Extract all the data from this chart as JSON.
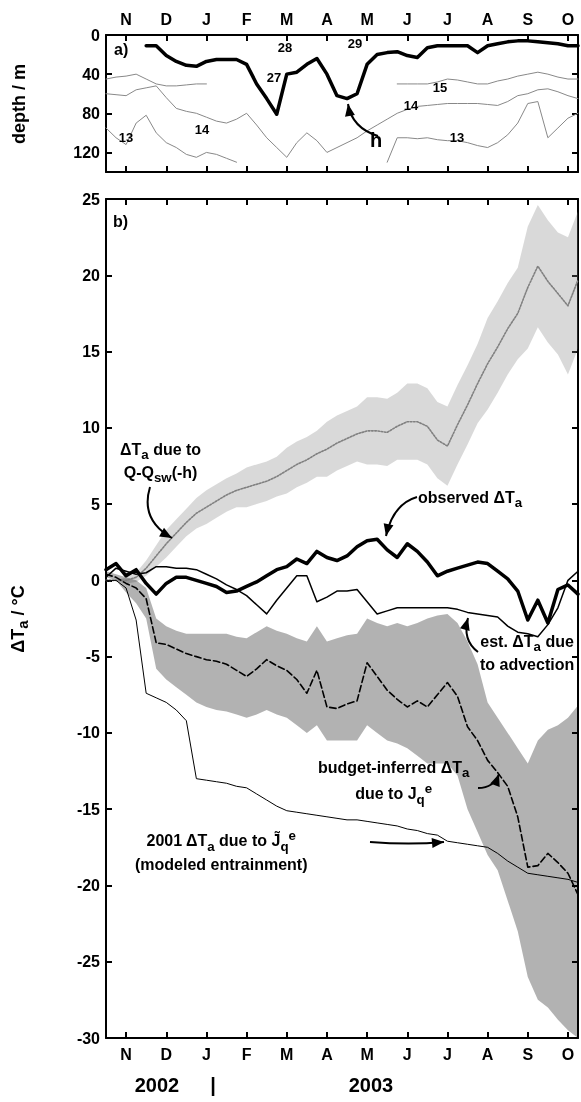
{
  "chart_data": [
    {
      "type": "line",
      "ylabel": "depth / m",
      "marker": "none",
      "categories": [
        null,
        null,
        "N",
        null,
        null,
        null,
        "D",
        null,
        null,
        null,
        "J",
        null,
        null,
        null,
        "F",
        null,
        null,
        null,
        "M",
        null,
        null,
        null,
        "A",
        null,
        null,
        null,
        "M",
        null,
        null,
        null,
        "J",
        null,
        null,
        null,
        "J",
        null,
        null,
        null,
        "A",
        null,
        null,
        null,
        "S",
        null,
        null,
        null,
        "O",
        null
      ],
      "ylim": [
        140,
        0
      ],
      "yticks": [
        0,
        40,
        80,
        120
      ],
      "series": [
        {
          "name": "h",
          "color": "#000000",
          "line_style": "solid",
          "values": [
            null,
            null,
            null,
            null,
            11,
            11,
            21,
            27,
            31,
            32,
            27,
            25,
            25,
            25,
            30,
            50,
            65,
            81,
            40,
            38,
            30,
            24,
            40,
            62,
            65,
            60,
            30,
            20,
            18,
            17,
            21,
            23,
            13,
            11,
            11,
            11,
            11,
            18,
            11,
            9,
            7,
            6,
            6,
            7,
            8,
            9,
            11,
            11
          ]
        },
        {
          "color": "#888888",
          "line_style": "solid",
          "values": [
            60,
            61,
            62,
            56,
            54,
            52,
            64,
            75,
            78,
            80,
            84,
            88,
            90,
            86,
            80,
            92,
            105,
            115,
            125,
            110,
            100,
            108,
            120,
            115,
            110,
            105,
            98,
            92,
            86,
            80,
            76,
            73,
            72,
            71,
            70,
            70,
            70,
            70,
            71,
            72,
            68,
            62,
            60,
            56,
            55,
            58,
            62,
            65
          ]
        },
        {
          "color": "#888888",
          "line_style": "solid",
          "values": [
            95,
            105,
            112,
            90,
            82,
            100,
            110,
            115,
            122,
            125,
            120,
            122,
            126,
            130,
            null,
            null,
            null,
            null,
            null,
            null,
            null,
            null,
            null,
            null,
            null,
            null,
            null,
            null,
            130,
            105,
            105,
            106,
            105,
            107,
            108,
            108,
            110,
            113,
            115,
            110,
            102,
            90,
            70,
            68,
            105,
            95,
            85,
            80
          ]
        },
        {
          "color": "#888888",
          "line_style": "solid",
          "values": [
            45,
            43,
            42,
            40,
            45,
            50,
            52,
            52,
            51,
            50,
            50,
            null,
            null,
            null,
            null,
            null,
            null,
            null,
            null,
            null,
            null,
            null,
            null,
            null,
            null,
            null,
            null,
            null,
            null,
            50,
            50,
            50,
            50,
            48,
            45,
            46,
            48,
            50,
            50,
            47,
            45,
            42,
            40,
            38,
            40,
            43,
            45,
            45
          ]
        }
      ],
      "annotations": [
        "a)",
        "13",
        "14",
        "27",
        "28",
        "29",
        "15",
        "14",
        "13"
      ]
    },
    {
      "type": "line",
      "ylabel": "ΔT$_{a}$ / °C",
      "marker": "none",
      "categories": [
        null,
        null,
        "N",
        null,
        null,
        null,
        "D",
        null,
        null,
        null,
        "J",
        null,
        null,
        null,
        "F",
        null,
        null,
        null,
        "M",
        null,
        null,
        null,
        "A",
        null,
        null,
        null,
        "M",
        null,
        null,
        null,
        "J",
        null,
        null,
        null,
        "J",
        null,
        null,
        null,
        "A",
        null,
        null,
        null,
        "S",
        null,
        null,
        null,
        "O",
        null
      ],
      "ylim": [
        -30,
        25
      ],
      "yticks": [
        -30,
        -25,
        -20,
        -15,
        -10,
        -5,
        0,
        5,
        10,
        15,
        20,
        25
      ],
      "series": [
        {
          "name": "ΔT$_{a}$ due to\nQ-Q$_{sw}$(-h)",
          "color": "#808080",
          "line_style": "dotted",
          "values": [
            0,
            0,
            0,
            0.2,
            0.8,
            1.6,
            2.4,
            3.1,
            3.8,
            4.4,
            4.8,
            5.2,
            5.6,
            5.9,
            6.1,
            6.3,
            6.5,
            6.8,
            7.2,
            7.6,
            7.9,
            8.3,
            8.6,
            9,
            9.3,
            9.6,
            9.8,
            9.8,
            9.7,
            10.1,
            10.4,
            10.4,
            10.1,
            9.2,
            8.8,
            10.2,
            11.5,
            12.9,
            14.2,
            15.3,
            16.5,
            17.5,
            19.2,
            20.6,
            19.6,
            18.8,
            18,
            19.7
          ],
          "lower": [
            0,
            0,
            -0.2,
            -0.1,
            0.3,
            0.9,
            1.5,
            2.2,
            2.9,
            3.4,
            3.7,
            4.1,
            4.5,
            4.8,
            4.8,
            5,
            5.2,
            5.5,
            5.7,
            6.1,
            6.4,
            6.8,
            6.8,
            7.2,
            7.5,
            7.8,
            7.6,
            7.6,
            7.5,
            7.9,
            7.9,
            7.9,
            7.6,
            6.7,
            6.2,
            7.6,
            8.9,
            10.3,
            11.2,
            12.3,
            13.5,
            14.5,
            15.2,
            16.6,
            15.6,
            14.8,
            13.5,
            15.2
          ],
          "upper": [
            0,
            0,
            0.2,
            0.5,
            1.3,
            2.3,
            3.3,
            4,
            4.7,
            5.4,
            5.9,
            6.3,
            6.7,
            7,
            7.4,
            7.6,
            7.8,
            8.1,
            8.7,
            9.1,
            9.4,
            9.8,
            10.4,
            10.8,
            11.1,
            11.4,
            12,
            12,
            11.9,
            12.3,
            12.9,
            12.9,
            12.6,
            11.7,
            11.4,
            12.8,
            14.1,
            15.5,
            17.2,
            18.3,
            19.5,
            20.5,
            23.2,
            24.6,
            23.6,
            22.8,
            22.5,
            24.2
          ]
        },
        {
          "name": "observed ΔT$_{a}$",
          "color": "#000000",
          "line_style": "solid",
          "values": [
            0.7,
            1.1,
            0.3,
            0.7,
            -0.2,
            -0.9,
            -0.2,
            0.2,
            0.2,
            0,
            -0.2,
            -0.4,
            -0.8,
            -0.7,
            -0.4,
            -0.1,
            0.3,
            0.7,
            0.9,
            1.4,
            1.1,
            1.9,
            1.5,
            1.3,
            1.6,
            2.2,
            2.6,
            2.7,
            2,
            1.5,
            2.4,
            1.9,
            1.2,
            0.3,
            0.6,
            0.8,
            1,
            1.2,
            1.1,
            0.6,
            0.1,
            -0.7,
            -2.6,
            -1.3,
            -2.8,
            -0.6,
            -0.3,
            -0.9
          ]
        },
        {
          "name": "est. ΔT$_{a}$ due\nto advection",
          "color": "#000000",
          "line_style": "solid",
          "values": [
            0.2,
            0.8,
            0.6,
            0.4,
            0.5,
            0.9,
            0.9,
            0.8,
            0.8,
            0.7,
            0.4,
            0.1,
            -0.3,
            -0.6,
            -1,
            -1.6,
            -2.2,
            -1.3,
            -0.5,
            0.3,
            0.3,
            -1.4,
            -1.1,
            -0.7,
            -0.7,
            -0.6,
            -1.4,
            -2.2,
            -2,
            -1.8,
            -1.8,
            -1.8,
            -1.8,
            -1.8,
            -1.8,
            -1.9,
            -2.1,
            -2.2,
            -2.3,
            -2.4,
            -3,
            -3.4,
            -3.5,
            -3.7,
            -2.9,
            -1.8,
            0,
            0.6
          ]
        },
        {
          "name": "budget-inferred ΔT$_{a}$\ndue to J$_{q}$$^{e}$",
          "color": "#000000",
          "line_style": "dashed",
          "values": [
            0.4,
            0.2,
            -0.2,
            -0.5,
            -1.2,
            -4.1,
            -4.2,
            -4.5,
            -4.8,
            -5,
            -5.2,
            -5.3,
            -5.5,
            -5.9,
            -6.3,
            -5.8,
            -5.2,
            -5.6,
            -5.9,
            -6.5,
            -7.4,
            -5.9,
            -8.3,
            -8.4,
            -8.1,
            -7.9,
            -5.4,
            -6.3,
            -7.2,
            -7.8,
            -8.3,
            -7.9,
            -8.3,
            -7.5,
            -6.7,
            -7.6,
            -9.6,
            -10.5,
            -11.8,
            -12.6,
            -13.5,
            -15.5,
            -18.8,
            -18.7,
            -17.9,
            -18.5,
            -19.2,
            -20.6
          ],
          "lower": [
            0.2,
            0,
            -0.8,
            -1.5,
            -2.5,
            -5.8,
            -6.5,
            -7,
            -7.5,
            -8,
            -8.3,
            -8.5,
            -8.6,
            -8.8,
            -9,
            -8.8,
            -8.5,
            -8.8,
            -9,
            -9.5,
            -10,
            -9.5,
            -10.5,
            -10.5,
            -10.5,
            -10.5,
            -9.5,
            -10,
            -10.5,
            -10.7,
            -11,
            -11.5,
            -12,
            -12,
            -12,
            -12.8,
            -15,
            -16.5,
            -18,
            -19,
            -21,
            -23,
            -26,
            -27.5,
            -28,
            -28.8,
            -29.5,
            -30
          ],
          "upper": [
            0.6,
            0.4,
            0.2,
            0,
            -0.5,
            -2.5,
            -3,
            -3.3,
            -3.5,
            -3.5,
            -3.5,
            -3.5,
            -3.5,
            -3.7,
            -3.8,
            -3.4,
            -3,
            -3.3,
            -3.5,
            -3.8,
            -4,
            -3,
            -4,
            -3.8,
            -3.6,
            -3.5,
            -2.5,
            -2.8,
            -3,
            -2.8,
            -3,
            -2.8,
            -2.5,
            -2.3,
            -2.2,
            -2.8,
            -4,
            -5.5,
            -8,
            -9,
            -10,
            -11,
            -12,
            -10.5,
            -9.8,
            -9.5,
            -9,
            -8.2
          ]
        },
        {
          "name": "2001 ΔT$_{a}$ due to J̃$_{q}$$^{e}$\n(modeled entrainment)",
          "color": "#000000",
          "line_style": "solid",
          "values": [
            0,
            0,
            -0.5,
            -2.6,
            -7.4,
            -7.7,
            -8,
            -8.5,
            -9.2,
            -13,
            -13.1,
            -13.2,
            -13.3,
            -13.5,
            -13.6,
            -14,
            -14.4,
            -14.8,
            -15.1,
            -15.2,
            -15.3,
            -15.4,
            -15.5,
            -15.6,
            -15.7,
            -15.7,
            -15.8,
            -15.9,
            -16,
            -16.1,
            -16.3,
            -16.4,
            -16.6,
            -16.7,
            -17.1,
            -17.2,
            -17.3,
            -17.4,
            -17.5,
            -17.9,
            -18.4,
            -18.8,
            -19.2,
            -19.3,
            -19.4,
            -19.5,
            -19.6,
            -19.8
          ]
        }
      ],
      "annotations": [
        "b)",
        "2002",
        "|",
        "2003"
      ]
    }
  ]
}
